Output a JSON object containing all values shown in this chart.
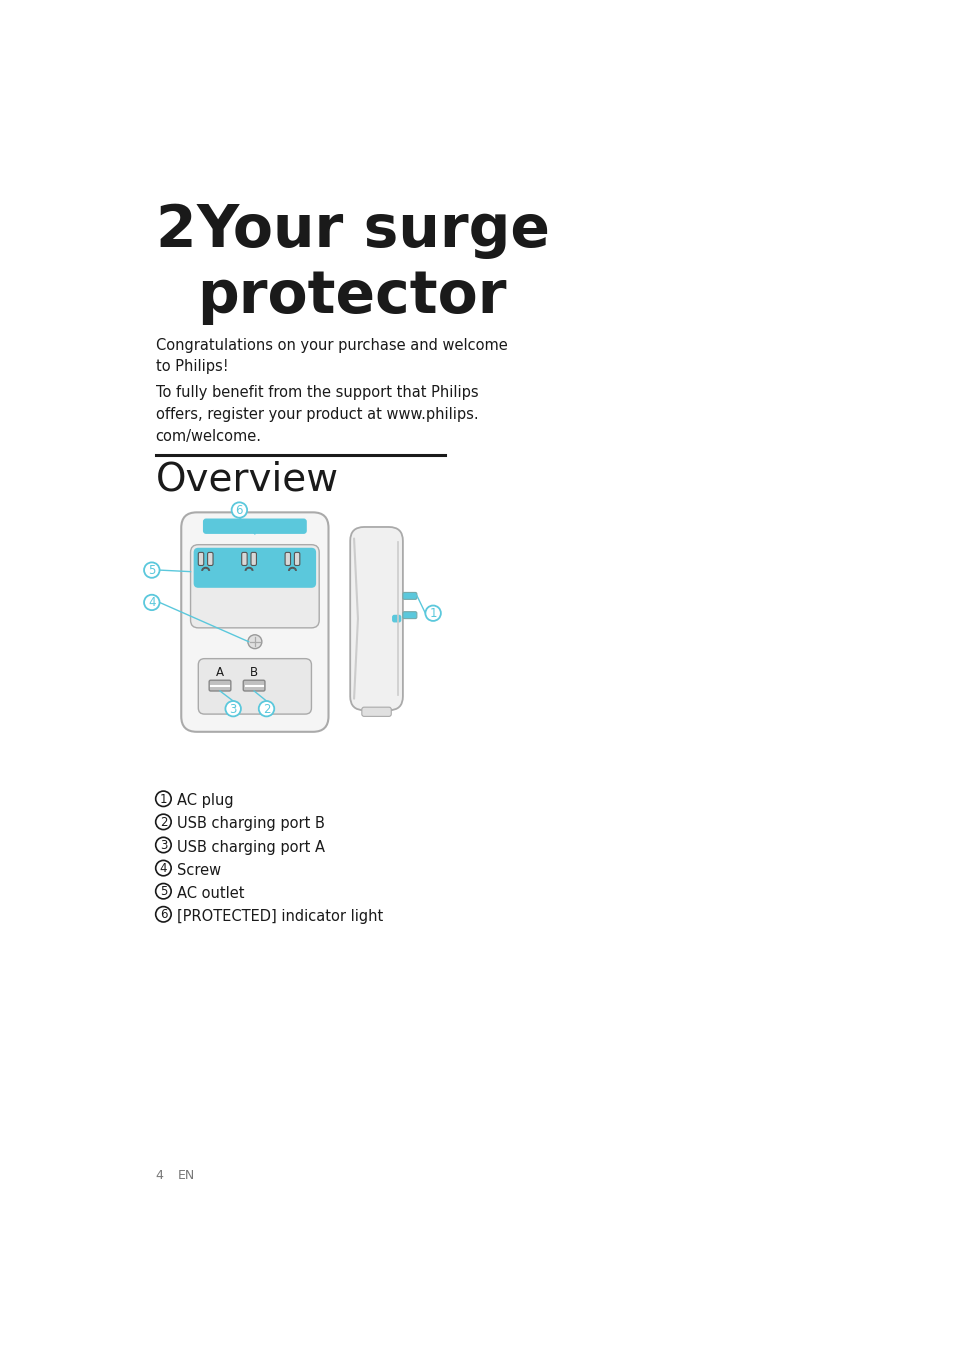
{
  "title_number": "2",
  "title_text": "Your surge\nprotector",
  "para1": "Congratulations on your purchase and welcome\nto Philips!",
  "para2": "To fully benefit from the support that Philips\noffers, register your product at www.philips.\ncom/welcome.",
  "section_title": "Overview",
  "items": [
    {
      "num": "1",
      "text": "AC plug"
    },
    {
      "num": "2",
      "text": "USB charging port B"
    },
    {
      "num": "3",
      "text": "USB charging port A"
    },
    {
      "num": "4",
      "text": "Screw"
    },
    {
      "num": "5",
      "text": "AC outlet"
    },
    {
      "num": "6",
      "text": "[PROTECTED] indicator light"
    }
  ],
  "footer_num": "4",
  "footer_lang": "EN",
  "blue_color": "#5BC8DC",
  "bg_color": "#ffffff",
  "text_color": "#1a1a1a",
  "body_font_size": 10.5,
  "title_number_size": 42,
  "title_text_size": 42,
  "section_font_size": 28
}
